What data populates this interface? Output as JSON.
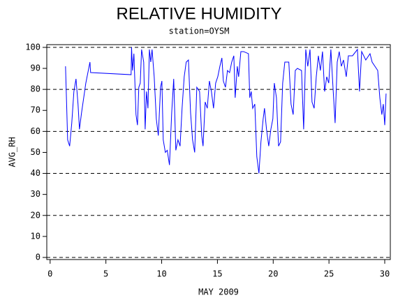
{
  "chart_data": {
    "type": "line",
    "title": "RELATIVE HUMIDITY",
    "subtitle": "station=OYSM",
    "ylabel": "AVG_RH",
    "xlabel": "MAY 2009",
    "xlim": [
      -0.3,
      30.5
    ],
    "ylim": [
      -1,
      101.3
    ],
    "xticks": [
      0,
      5,
      10,
      15,
      20,
      25,
      30
    ],
    "yticks": [
      0,
      10,
      20,
      30,
      40,
      50,
      60,
      70,
      80,
      90,
      100
    ],
    "ygrid": [
      0,
      20,
      40,
      60,
      80,
      100
    ],
    "grid_style": "dashed",
    "x": [
      1.38,
      1.57,
      1.75,
      1.94,
      2.13,
      2.32,
      2.5,
      2.63,
      2.82,
      3.2,
      3.57,
      3.63,
      7.26,
      7.3,
      7.39,
      7.51,
      7.7,
      7.83,
      7.95,
      8.08,
      8.2,
      8.39,
      8.52,
      8.64,
      8.77,
      8.9,
      9.02,
      9.14,
      9.33,
      9.52,
      9.7,
      9.9,
      10.02,
      10.14,
      10.33,
      10.5,
      10.7,
      10.9,
      11.08,
      11.27,
      11.46,
      11.65,
      11.83,
      12.02,
      12.2,
      12.4,
      12.59,
      12.77,
      12.96,
      13.15,
      13.4,
      13.59,
      13.71,
      13.9,
      14.09,
      14.28,
      14.46,
      14.65,
      14.84,
      15.03,
      15.22,
      15.4,
      15.53,
      15.72,
      15.9,
      16.09,
      16.28,
      16.47,
      16.59,
      16.78,
      16.9,
      17.1,
      17.35,
      17.78,
      17.9,
      18.03,
      18.16,
      18.35,
      18.53,
      18.72,
      18.9,
      19.1,
      19.22,
      19.4,
      19.6,
      19.79,
      19.97,
      20.1,
      20.29,
      20.48,
      20.66,
      20.85,
      21.04,
      21.4,
      21.6,
      21.79,
      21.98,
      22.17,
      22.54,
      22.73,
      22.92,
      23.1,
      23.3,
      23.48,
      23.67,
      23.86,
      24.05,
      24.23,
      24.42,
      24.61,
      24.8,
      24.98,
      25.17,
      25.36,
      25.55,
      25.74,
      25.92,
      26.11,
      26.3,
      26.55,
      26.74,
      27.11,
      27.55,
      27.74,
      27.93,
      28.3,
      28.68,
      28.87,
      29.37,
      29.56,
      29.74,
      29.87,
      30.0,
      30.12
    ],
    "series": [
      {
        "name": "AVG_RH",
        "color": "#0000ff",
        "values": [
          91,
          56,
          53,
          64,
          79,
          85,
          73,
          61,
          69,
          83,
          93,
          88,
          87,
          100,
          89,
          97,
          68,
          63,
          81,
          83,
          99,
          93,
          61,
          79,
          71,
          99,
          93,
          99,
          86,
          66,
          58,
          81,
          84,
          56,
          50,
          51,
          44,
          69,
          85,
          51,
          56,
          53,
          71,
          86,
          93,
          94,
          69,
          56,
          50,
          81,
          79,
          58,
          53,
          74,
          71,
          84,
          79,
          71,
          83,
          86,
          91,
          95,
          84,
          81,
          89,
          88,
          93,
          96,
          76,
          91,
          86,
          98,
          98,
          97,
          76,
          79,
          71,
          73,
          48,
          40,
          55,
          66,
          71,
          61,
          53,
          61,
          66,
          83,
          76,
          53,
          55,
          83,
          93,
          93,
          73,
          68,
          89,
          90,
          89,
          61,
          99,
          91,
          99,
          74,
          71,
          86,
          96,
          89,
          98,
          79,
          86,
          83,
          99,
          81,
          64,
          93,
          98,
          91,
          94,
          86,
          96,
          96,
          99,
          79,
          98,
          94,
          97,
          93,
          89,
          76,
          68,
          73,
          63,
          78
        ]
      }
    ]
  }
}
